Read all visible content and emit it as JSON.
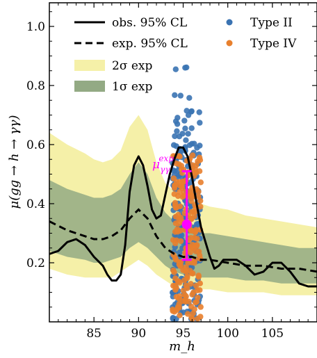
{
  "chart_data": {
    "type": "line",
    "xlabel": "m_h",
    "ylabel": "μ(gg → h → γγ)",
    "xlim": [
      80,
      110
    ],
    "ylim": [
      0.0,
      1.08
    ],
    "xticks": [
      85,
      90,
      95,
      100,
      105
    ],
    "xtick_labels": [
      "85",
      "90",
      "95",
      "100",
      "105"
    ],
    "yticks": [
      0.2,
      0.4,
      0.6,
      0.8,
      1.0
    ],
    "ytick_labels": [
      "0.2",
      "0.4",
      "0.6",
      "0.8",
      "1.0"
    ],
    "grid": false,
    "legend_placement": "top",
    "colors": {
      "observed": "#000000",
      "expected": "#000000",
      "band_2sigma": "#f5f0a8",
      "band_1sigma": "#93aa84",
      "type2": "#3a73b2",
      "type4": "#e8802d",
      "measurement": "#ff00ff"
    },
    "series": [
      {
        "name": "obs. 95% CL",
        "style": "solid",
        "x": [
          80,
          81,
          82,
          83,
          84,
          85,
          86,
          86.5,
          87,
          87.5,
          88,
          88.5,
          89,
          89.5,
          90,
          90.5,
          91,
          91.5,
          92,
          92.5,
          93,
          93.5,
          94,
          94.5,
          95,
          95.5,
          96,
          96.5,
          97,
          97.5,
          98,
          98.5,
          99,
          99.5,
          100,
          101,
          102,
          103,
          104,
          105,
          106,
          107,
          108,
          109,
          110
        ],
        "values": [
          0.23,
          0.24,
          0.27,
          0.28,
          0.26,
          0.22,
          0.19,
          0.16,
          0.14,
          0.14,
          0.16,
          0.26,
          0.44,
          0.53,
          0.56,
          0.53,
          0.46,
          0.38,
          0.35,
          0.36,
          0.43,
          0.5,
          0.55,
          0.59,
          0.59,
          0.56,
          0.49,
          0.4,
          0.32,
          0.27,
          0.22,
          0.18,
          0.19,
          0.21,
          0.21,
          0.21,
          0.19,
          0.16,
          0.17,
          0.2,
          0.2,
          0.17,
          0.13,
          0.12,
          0.12
        ]
      },
      {
        "name": "exp. 95% CL",
        "style": "dashed",
        "x": [
          80,
          82,
          84,
          85,
          86,
          87,
          88,
          89,
          90,
          91,
          92,
          93,
          94,
          95,
          96,
          97,
          98,
          100,
          102,
          104,
          106,
          108,
          110
        ],
        "values": [
          0.34,
          0.31,
          0.29,
          0.28,
          0.28,
          0.29,
          0.31,
          0.35,
          0.38,
          0.35,
          0.29,
          0.25,
          0.23,
          0.22,
          0.22,
          0.21,
          0.21,
          0.2,
          0.19,
          0.19,
          0.18,
          0.18,
          0.17
        ]
      },
      {
        "name": "2σ exp",
        "style": "band",
        "x": [
          80,
          82,
          84,
          85,
          86,
          87,
          88,
          89,
          90,
          91,
          92,
          93,
          94,
          95,
          96,
          97,
          98,
          100,
          102,
          104,
          106,
          108,
          110
        ],
        "upper": [
          0.64,
          0.6,
          0.57,
          0.55,
          0.54,
          0.55,
          0.58,
          0.66,
          0.7,
          0.65,
          0.54,
          0.47,
          0.44,
          0.42,
          0.41,
          0.4,
          0.39,
          0.38,
          0.36,
          0.35,
          0.34,
          0.33,
          0.32
        ],
        "lower": [
          0.18,
          0.16,
          0.15,
          0.15,
          0.15,
          0.15,
          0.17,
          0.19,
          0.21,
          0.19,
          0.16,
          0.14,
          0.12,
          0.12,
          0.11,
          0.11,
          0.11,
          0.1,
          0.1,
          0.1,
          0.09,
          0.09,
          0.09
        ]
      },
      {
        "name": "1σ exp",
        "style": "band",
        "x": [
          80,
          82,
          84,
          85,
          86,
          87,
          88,
          89,
          90,
          91,
          92,
          93,
          94,
          95,
          96,
          97,
          98,
          100,
          102,
          104,
          106,
          108,
          110
        ],
        "upper": [
          0.48,
          0.45,
          0.43,
          0.42,
          0.42,
          0.43,
          0.45,
          0.5,
          0.54,
          0.5,
          0.42,
          0.37,
          0.34,
          0.32,
          0.31,
          0.3,
          0.3,
          0.29,
          0.28,
          0.27,
          0.26,
          0.25,
          0.25
        ],
        "lower": [
          0.24,
          0.22,
          0.21,
          0.2,
          0.2,
          0.21,
          0.22,
          0.25,
          0.27,
          0.25,
          0.22,
          0.19,
          0.17,
          0.16,
          0.16,
          0.15,
          0.15,
          0.15,
          0.14,
          0.14,
          0.13,
          0.13,
          0.13
        ]
      }
    ],
    "scatter": [
      {
        "name": "Type II",
        "x_range": [
          93.8,
          97.0
        ],
        "y_range": [
          0.02,
          0.86
        ],
        "sample_y": [
          0.86,
          0.76,
          0.72,
          0.7,
          0.68,
          0.66,
          0.64,
          0.62,
          0.6,
          0.58,
          0.56,
          0.54,
          0.52,
          0.5,
          0.48,
          0.46,
          0.44,
          0.42,
          0.4,
          0.38,
          0.36,
          0.34,
          0.32,
          0.3,
          0.28,
          0.26,
          0.24,
          0.22,
          0.2,
          0.18,
          0.16,
          0.14,
          0.12,
          0.1,
          0.08,
          0.06,
          0.04,
          0.02
        ]
      },
      {
        "name": "Type IV",
        "x_range": [
          93.8,
          97.0
        ],
        "y_range": [
          0.02,
          0.56
        ],
        "sample_y": [
          0.56,
          0.54,
          0.52,
          0.5,
          0.48,
          0.46,
          0.44,
          0.42,
          0.4,
          0.38,
          0.36,
          0.34,
          0.32,
          0.3,
          0.28,
          0.26,
          0.24,
          0.22,
          0.2,
          0.18,
          0.16,
          0.14,
          0.12,
          0.1,
          0.08,
          0.06,
          0.04,
          0.02
        ]
      }
    ],
    "measurement": {
      "label_main": "μ",
      "label_sub": "γγ",
      "label_sup": "exp",
      "x": 95.4,
      "y": 0.33,
      "y_low": 0.21,
      "y_high": 0.51
    },
    "legend": [
      {
        "label": "obs. 95% CL",
        "kind": "solid-line"
      },
      {
        "label": "exp. 95% CL",
        "kind": "dashed-line"
      },
      {
        "label": "2σ exp",
        "kind": "band-2sigma"
      },
      {
        "label": "1σ exp",
        "kind": "band-1sigma"
      },
      {
        "label": "Type II",
        "kind": "dot-type2"
      },
      {
        "label": "Type IV",
        "kind": "dot-type4"
      }
    ]
  }
}
